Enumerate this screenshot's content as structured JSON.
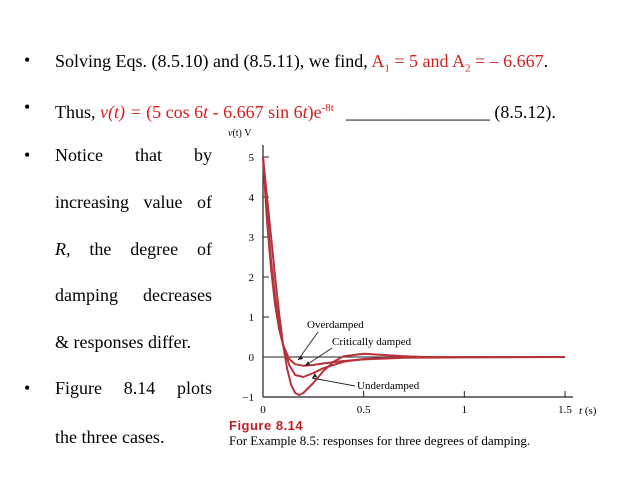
{
  "bullets": {
    "b1": {
      "text_a": "Solving  Eqs. (8.5.10) and (8.5.11), we find, ",
      "a1": "A",
      "a1_sub": "1",
      "a1_rest": " = 5 and A",
      "a2_sub": "2",
      "a2_rest": " = – 6.667",
      "end": "."
    },
    "b2": {
      "prefix": "Thus, ",
      "v": "v(t) = ",
      "paren": "(5 cos 6",
      "t1": "t",
      "mid": " - 6.667 sin 6",
      "t2": "t",
      "close": ")e",
      "exp": "-8t",
      "blank": "________________",
      "eq": " (8.5.12)."
    },
    "b3": {
      "line1": [
        "Notice",
        "that",
        "by"
      ],
      "line2": [
        "increasing",
        "value",
        "of"
      ],
      "line3_r": "R,",
      "line3": [
        "the",
        "degree",
        "of"
      ],
      "line4": [
        "damping",
        "decreases"
      ],
      "line5": "& responses differ."
    },
    "b4": {
      "line1": [
        "Figure",
        "8.14",
        "plots"
      ],
      "line2": "the three cases."
    }
  },
  "figure": {
    "title": "Figure 8.14",
    "caption": "For Example 8.5: responses for three degrees of damping.",
    "colors": {
      "curve": "#b5333a",
      "axis": "#222222"
    }
  },
  "chart_data": {
    "type": "line",
    "ylabel_var": "v",
    "ylabel_paren": "(t)",
    "ylabel_unit": " V",
    "xlabel_var": "t",
    "xlabel_unit": " (s)",
    "xlim": [
      0,
      1.5
    ],
    "ylim": [
      -1,
      5
    ],
    "xticks": [
      "0",
      "0.5",
      "1",
      "1.5"
    ],
    "yticks": [
      "−1",
      "0",
      "1",
      "2",
      "3",
      "4",
      "5"
    ],
    "grid": false,
    "annotations": [
      "Overdamped",
      "Critically damped",
      "Underdamped"
    ],
    "series": [
      {
        "name": "Overdamped",
        "x": [
          0,
          0.02,
          0.04,
          0.06,
          0.08,
          0.1,
          0.13,
          0.16,
          0.2,
          0.25,
          0.3,
          0.4,
          0.5,
          0.7,
          1.0,
          1.5
        ],
        "y": [
          5,
          3.4,
          2.2,
          1.3,
          0.7,
          0.3,
          -0.05,
          -0.18,
          -0.22,
          -0.2,
          -0.16,
          -0.1,
          -0.06,
          -0.02,
          -0.01,
          0
        ]
      },
      {
        "name": "Critically damped",
        "x": [
          0,
          0.02,
          0.04,
          0.06,
          0.08,
          0.1,
          0.13,
          0.16,
          0.2,
          0.25,
          0.3,
          0.4,
          0.5,
          0.7,
          1.0,
          1.5
        ],
        "y": [
          5,
          3.6,
          2.4,
          1.5,
          0.8,
          0.3,
          -0.2,
          -0.45,
          -0.5,
          -0.4,
          -0.28,
          -0.12,
          -0.05,
          -0.01,
          0,
          0
        ]
      },
      {
        "name": "Underdamped",
        "x": [
          0,
          0.02,
          0.04,
          0.06,
          0.08,
          0.1,
          0.12,
          0.14,
          0.16,
          0.18,
          0.2,
          0.25,
          0.3,
          0.35,
          0.4,
          0.5,
          0.6,
          0.7,
          0.8,
          1.0,
          1.5
        ],
        "y": [
          5,
          4.0,
          3.0,
          2.0,
          1.1,
          0.3,
          -0.3,
          -0.7,
          -0.9,
          -0.95,
          -0.9,
          -0.65,
          -0.35,
          -0.12,
          0.02,
          0.08,
          0.05,
          0.02,
          0,
          0,
          0
        ]
      }
    ]
  }
}
